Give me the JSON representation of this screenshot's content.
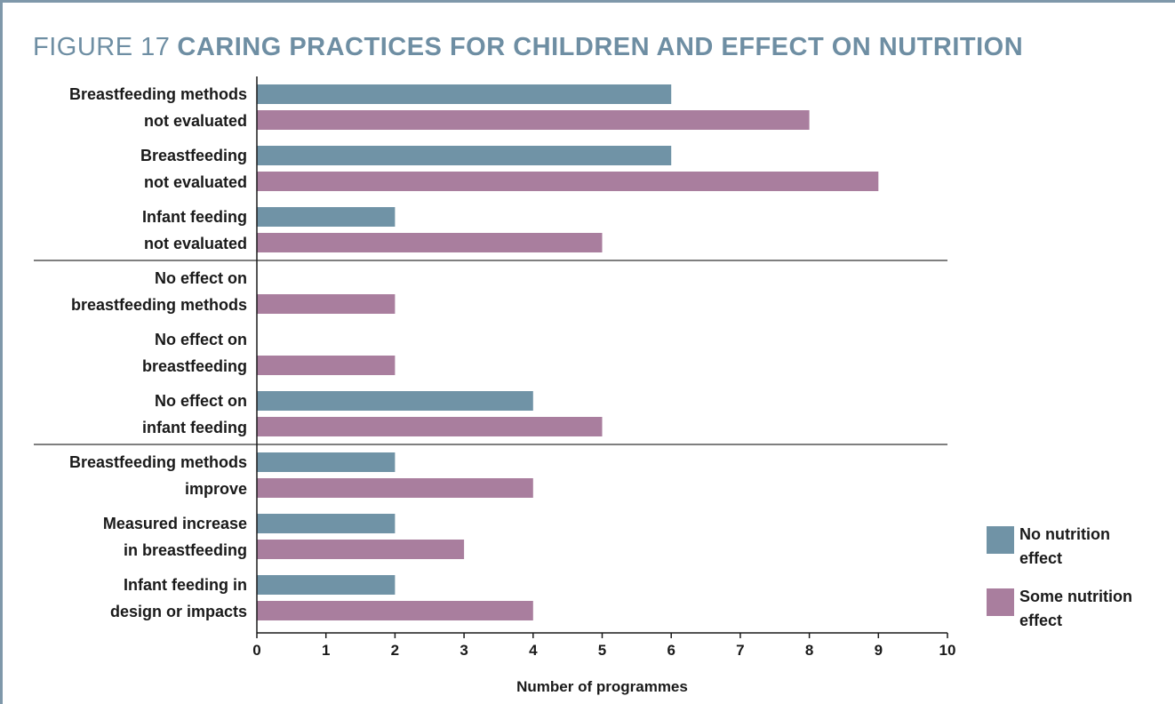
{
  "figure": {
    "number_label": "FIGURE 17",
    "title": "CARING PRACTICES FOR CHILDREN AND EFFECT ON NUTRITION"
  },
  "colors": {
    "frame": "#7f98aa",
    "no_effect_series": "#7093a6",
    "some_effect_series": "#a97e9e",
    "title": "#6e8ea3"
  },
  "chart_data": {
    "type": "bar",
    "orientation": "horizontal",
    "categories": [
      [
        "Breastfeeding methods",
        "not evaluated"
      ],
      [
        "Breastfeeding",
        "not evaluated"
      ],
      [
        "Infant feeding",
        "not evaluated"
      ],
      [
        "No effect on",
        "breastfeeding methods"
      ],
      [
        "No effect on",
        "breastfeeding"
      ],
      [
        "No effect on",
        "infant feeding"
      ],
      [
        "Breastfeeding methods",
        "improve"
      ],
      [
        "Measured increase",
        "in breastfeeding"
      ],
      [
        "Infant feeding in",
        "design or impacts"
      ]
    ],
    "series": [
      {
        "name": "No nutrition effect",
        "color": "#7093a6",
        "values": [
          6,
          6,
          2,
          0,
          0,
          4,
          2,
          2,
          2
        ]
      },
      {
        "name": "Some nutrition effect",
        "color": "#a97e9e",
        "values": [
          8,
          9,
          5,
          2,
          2,
          5,
          4,
          3,
          4
        ]
      }
    ],
    "group_separators_after": [
      2,
      5
    ],
    "xlabel": "Number of programmes",
    "xlim": [
      0,
      10
    ],
    "xticks": [
      "0",
      "1",
      "2",
      "3",
      "4",
      "5",
      "6",
      "7",
      "8",
      "9",
      "10"
    ],
    "grid": false,
    "legend_placement": "bottom-right",
    "legend": [
      {
        "lines": [
          "No nutrition",
          "effect"
        ],
        "color": "#7093a6"
      },
      {
        "lines": [
          "Some nutrition",
          "effect"
        ],
        "color": "#a97e9e"
      }
    ]
  }
}
